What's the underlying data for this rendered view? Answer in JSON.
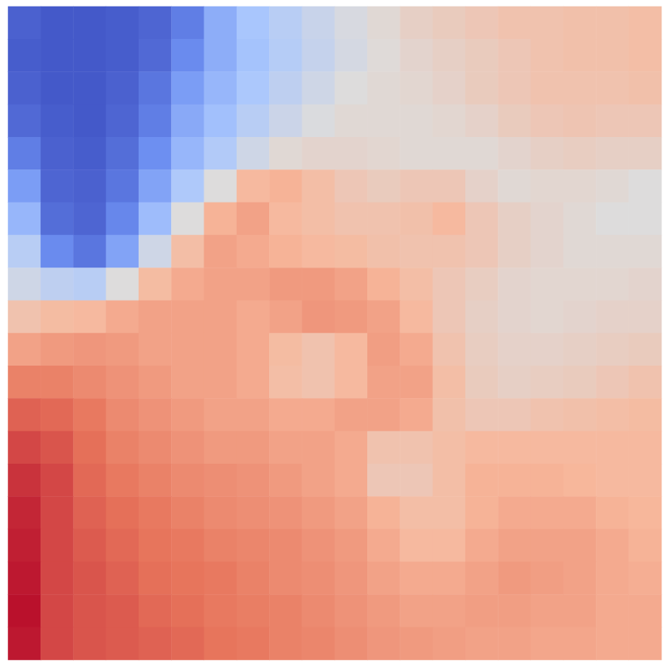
{
  "chart_data": {
    "type": "heatmap",
    "tick_labels": false,
    "color_range": [
      0,
      1
    ],
    "cells": [
      [
        0.05,
        0.03,
        0.03,
        0.04,
        0.06,
        0.12,
        0.25,
        0.33,
        0.38,
        0.43,
        0.48,
        0.52,
        0.56,
        0.58,
        0.6,
        0.62,
        0.62,
        0.63,
        0.63,
        0.64
      ],
      [
        0.04,
        0.03,
        0.03,
        0.04,
        0.07,
        0.15,
        0.25,
        0.32,
        0.37,
        0.42,
        0.47,
        0.51,
        0.54,
        0.56,
        0.58,
        0.6,
        0.62,
        0.63,
        0.63,
        0.64
      ],
      [
        0.05,
        0.03,
        0.03,
        0.05,
        0.1,
        0.2,
        0.28,
        0.34,
        0.4,
        0.45,
        0.5,
        0.52,
        0.53,
        0.55,
        0.58,
        0.6,
        0.62,
        0.62,
        0.62,
        0.63
      ],
      [
        0.07,
        0.04,
        0.03,
        0.06,
        0.12,
        0.24,
        0.31,
        0.38,
        0.44,
        0.49,
        0.52,
        0.52,
        0.52,
        0.53,
        0.55,
        0.58,
        0.6,
        0.61,
        0.6,
        0.6
      ],
      [
        0.12,
        0.05,
        0.04,
        0.08,
        0.16,
        0.28,
        0.36,
        0.45,
        0.52,
        0.54,
        0.54,
        0.53,
        0.52,
        0.52,
        0.52,
        0.54,
        0.56,
        0.57,
        0.56,
        0.56
      ],
      [
        0.2,
        0.06,
        0.05,
        0.1,
        0.22,
        0.35,
        0.5,
        0.66,
        0.68,
        0.64,
        0.6,
        0.58,
        0.6,
        0.6,
        0.55,
        0.52,
        0.53,
        0.53,
        0.52,
        0.5
      ],
      [
        0.28,
        0.08,
        0.06,
        0.14,
        0.3,
        0.5,
        0.68,
        0.72,
        0.66,
        0.64,
        0.62,
        0.62,
        0.63,
        0.66,
        0.6,
        0.56,
        0.54,
        0.52,
        0.5,
        0.5
      ],
      [
        0.38,
        0.15,
        0.1,
        0.22,
        0.45,
        0.64,
        0.72,
        0.7,
        0.68,
        0.66,
        0.65,
        0.63,
        0.62,
        0.62,
        0.6,
        0.56,
        0.54,
        0.52,
        0.52,
        0.52
      ],
      [
        0.45,
        0.4,
        0.38,
        0.5,
        0.65,
        0.7,
        0.72,
        0.72,
        0.74,
        0.74,
        0.72,
        0.68,
        0.64,
        0.6,
        0.57,
        0.54,
        0.53,
        0.53,
        0.53,
        0.54
      ],
      [
        0.62,
        0.65,
        0.66,
        0.7,
        0.72,
        0.72,
        0.72,
        0.7,
        0.72,
        0.75,
        0.74,
        0.72,
        0.66,
        0.6,
        0.56,
        0.54,
        0.53,
        0.54,
        0.55,
        0.55
      ],
      [
        0.72,
        0.74,
        0.75,
        0.74,
        0.72,
        0.72,
        0.72,
        0.7,
        0.65,
        0.62,
        0.66,
        0.73,
        0.7,
        0.62,
        0.57,
        0.55,
        0.55,
        0.56,
        0.57,
        0.58
      ],
      [
        0.8,
        0.8,
        0.78,
        0.76,
        0.74,
        0.72,
        0.72,
        0.7,
        0.64,
        0.62,
        0.66,
        0.72,
        0.72,
        0.64,
        0.58,
        0.56,
        0.57,
        0.58,
        0.6,
        0.62
      ],
      [
        0.86,
        0.85,
        0.82,
        0.78,
        0.76,
        0.74,
        0.72,
        0.72,
        0.7,
        0.7,
        0.72,
        0.72,
        0.7,
        0.63,
        0.6,
        0.6,
        0.62,
        0.63,
        0.64,
        0.65
      ],
      [
        0.9,
        0.88,
        0.84,
        0.8,
        0.78,
        0.76,
        0.74,
        0.74,
        0.72,
        0.72,
        0.7,
        0.62,
        0.62,
        0.64,
        0.66,
        0.66,
        0.66,
        0.66,
        0.66,
        0.66
      ],
      [
        0.93,
        0.9,
        0.85,
        0.82,
        0.8,
        0.78,
        0.77,
        0.76,
        0.74,
        0.72,
        0.7,
        0.6,
        0.6,
        0.64,
        0.68,
        0.68,
        0.68,
        0.67,
        0.66,
        0.66
      ],
      [
        0.95,
        0.9,
        0.86,
        0.84,
        0.82,
        0.8,
        0.78,
        0.77,
        0.76,
        0.74,
        0.72,
        0.68,
        0.64,
        0.64,
        0.68,
        0.7,
        0.7,
        0.7,
        0.68,
        0.67
      ],
      [
        0.96,
        0.9,
        0.87,
        0.85,
        0.83,
        0.82,
        0.8,
        0.79,
        0.78,
        0.76,
        0.74,
        0.7,
        0.66,
        0.66,
        0.7,
        0.72,
        0.72,
        0.72,
        0.7,
        0.68
      ],
      [
        0.97,
        0.9,
        0.88,
        0.86,
        0.84,
        0.83,
        0.82,
        0.8,
        0.78,
        0.77,
        0.75,
        0.72,
        0.7,
        0.7,
        0.72,
        0.74,
        0.73,
        0.72,
        0.7,
        0.69
      ],
      [
        0.98,
        0.9,
        0.88,
        0.87,
        0.85,
        0.84,
        0.82,
        0.81,
        0.8,
        0.78,
        0.76,
        0.74,
        0.72,
        0.72,
        0.73,
        0.73,
        0.72,
        0.72,
        0.7,
        0.7
      ],
      [
        0.97,
        0.9,
        0.88,
        0.87,
        0.86,
        0.85,
        0.83,
        0.82,
        0.8,
        0.79,
        0.77,
        0.75,
        0.74,
        0.73,
        0.72,
        0.72,
        0.71,
        0.71,
        0.7,
        0.7
      ]
    ]
  }
}
